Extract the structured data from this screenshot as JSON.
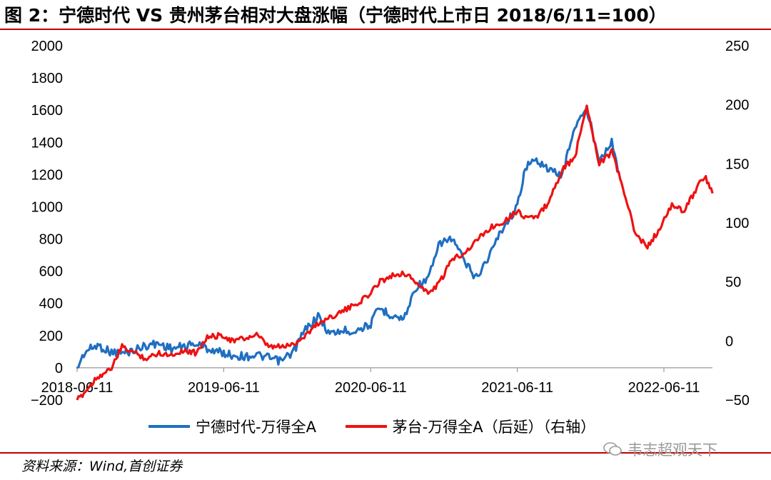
{
  "title": "图 2：宁德时代 VS 贵州茅台相对大盘涨幅（宁德时代上市日 2018/6/11=100）",
  "source": "资料来源：Wind,首创证券",
  "watermark": "韦志超观天下",
  "colors": {
    "series1": "#1f6fc1",
    "series2": "#ee1111",
    "rule": "#c00000"
  },
  "chart_data": {
    "type": "line",
    "x_ticks": [
      "2018-06-11",
      "2019-06-11",
      "2020-06-11",
      "2021-06-11",
      "2022-06-11"
    ],
    "y_left": {
      "ticks": [
        -200,
        0,
        200,
        400,
        600,
        800,
        1000,
        1200,
        1400,
        1600,
        1800,
        2000
      ],
      "lim": [
        -200,
        2000
      ]
    },
    "y_right": {
      "ticks": [
        -50,
        0,
        50,
        100,
        150,
        200,
        250
      ],
      "lim": [
        -50,
        250
      ]
    },
    "grid": false,
    "legend_position": "bottom",
    "series": [
      {
        "name": "宁德时代-万得全A",
        "axis": "left",
        "points": [
          [
            "2018-06-11",
            0
          ],
          [
            "2018-07-01",
            100
          ],
          [
            "2018-08-01",
            140
          ],
          [
            "2018-09-01",
            100
          ],
          [
            "2018-10-01",
            90
          ],
          [
            "2018-11-01",
            110
          ],
          [
            "2018-12-01",
            140
          ],
          [
            "2019-01-01",
            150
          ],
          [
            "2019-02-01",
            120
          ],
          [
            "2019-03-01",
            130
          ],
          [
            "2019-04-01",
            150
          ],
          [
            "2019-05-01",
            120
          ],
          [
            "2019-06-11",
            90
          ],
          [
            "2019-07-01",
            80
          ],
          [
            "2019-08-01",
            70
          ],
          [
            "2019-09-01",
            80
          ],
          [
            "2019-10-01",
            60
          ],
          [
            "2019-11-01",
            40
          ],
          [
            "2019-12-01",
            100
          ],
          [
            "2020-01-01",
            240
          ],
          [
            "2020-02-01",
            320
          ],
          [
            "2020-03-01",
            210
          ],
          [
            "2020-04-01",
            230
          ],
          [
            "2020-05-01",
            230
          ],
          [
            "2020-06-11",
            270
          ],
          [
            "2020-07-01",
            370
          ],
          [
            "2020-08-01",
            330
          ],
          [
            "2020-09-01",
            300
          ],
          [
            "2020-10-01",
            500
          ],
          [
            "2020-11-01",
            550
          ],
          [
            "2020-12-01",
            780
          ],
          [
            "2021-01-01",
            800
          ],
          [
            "2021-02-01",
            650
          ],
          [
            "2021-03-01",
            560
          ],
          [
            "2021-04-01",
            690
          ],
          [
            "2021-05-01",
            850
          ],
          [
            "2021-06-11",
            1000
          ],
          [
            "2021-07-01",
            1250
          ],
          [
            "2021-08-01",
            1290
          ],
          [
            "2021-09-01",
            1220
          ],
          [
            "2021-10-01",
            1200
          ],
          [
            "2021-11-01",
            1500
          ],
          [
            "2021-12-01",
            1600
          ],
          [
            "2022-01-01",
            1300
          ],
          [
            "2022-02-01",
            1400
          ],
          [
            "2022-02-20",
            1200
          ]
        ]
      },
      {
        "name": "茅台-万得全A（后延）（右轴）",
        "axis": "right",
        "points": [
          [
            "2018-06-11",
            -50
          ],
          [
            "2018-07-01",
            -43
          ],
          [
            "2018-08-01",
            -30
          ],
          [
            "2018-09-01",
            -25
          ],
          [
            "2018-10-01",
            -5
          ],
          [
            "2018-11-01",
            -10
          ],
          [
            "2018-12-01",
            -15
          ],
          [
            "2019-01-01",
            -10
          ],
          [
            "2019-02-01",
            -12
          ],
          [
            "2019-03-01",
            -8
          ],
          [
            "2019-04-01",
            -10
          ],
          [
            "2019-05-01",
            3
          ],
          [
            "2019-06-11",
            5
          ],
          [
            "2019-07-01",
            0
          ],
          [
            "2019-08-01",
            2
          ],
          [
            "2019-09-01",
            5
          ],
          [
            "2019-10-01",
            -5
          ],
          [
            "2019-11-01",
            -5
          ],
          [
            "2019-12-01",
            -3
          ],
          [
            "2020-01-01",
            5
          ],
          [
            "2020-02-01",
            15
          ],
          [
            "2020-03-01",
            20
          ],
          [
            "2020-04-01",
            25
          ],
          [
            "2020-05-01",
            30
          ],
          [
            "2020-06-11",
            40
          ],
          [
            "2020-07-01",
            50
          ],
          [
            "2020-08-01",
            55
          ],
          [
            "2020-09-01",
            58
          ],
          [
            "2020-10-01",
            50
          ],
          [
            "2020-11-01",
            40
          ],
          [
            "2020-12-01",
            50
          ],
          [
            "2021-01-01",
            70
          ],
          [
            "2021-02-01",
            75
          ],
          [
            "2021-03-01",
            85
          ],
          [
            "2021-04-01",
            95
          ],
          [
            "2021-05-01",
            100
          ],
          [
            "2021-06-11",
            110
          ],
          [
            "2021-07-01",
            105
          ],
          [
            "2021-08-01",
            105
          ],
          [
            "2021-09-01",
            120
          ],
          [
            "2021-10-01",
            145
          ],
          [
            "2021-11-01",
            155
          ],
          [
            "2021-12-01",
            200
          ],
          [
            "2022-01-01",
            150
          ],
          [
            "2022-02-01",
            160
          ],
          [
            "2022-03-01",
            130
          ],
          [
            "2022-04-01",
            90
          ],
          [
            "2022-05-01",
            80
          ],
          [
            "2022-06-01",
            95
          ],
          [
            "2022-07-01",
            115
          ],
          [
            "2022-08-01",
            110
          ],
          [
            "2022-09-01",
            130
          ],
          [
            "2022-09-20",
            140
          ],
          [
            "2022-10-10",
            125
          ]
        ]
      }
    ]
  }
}
